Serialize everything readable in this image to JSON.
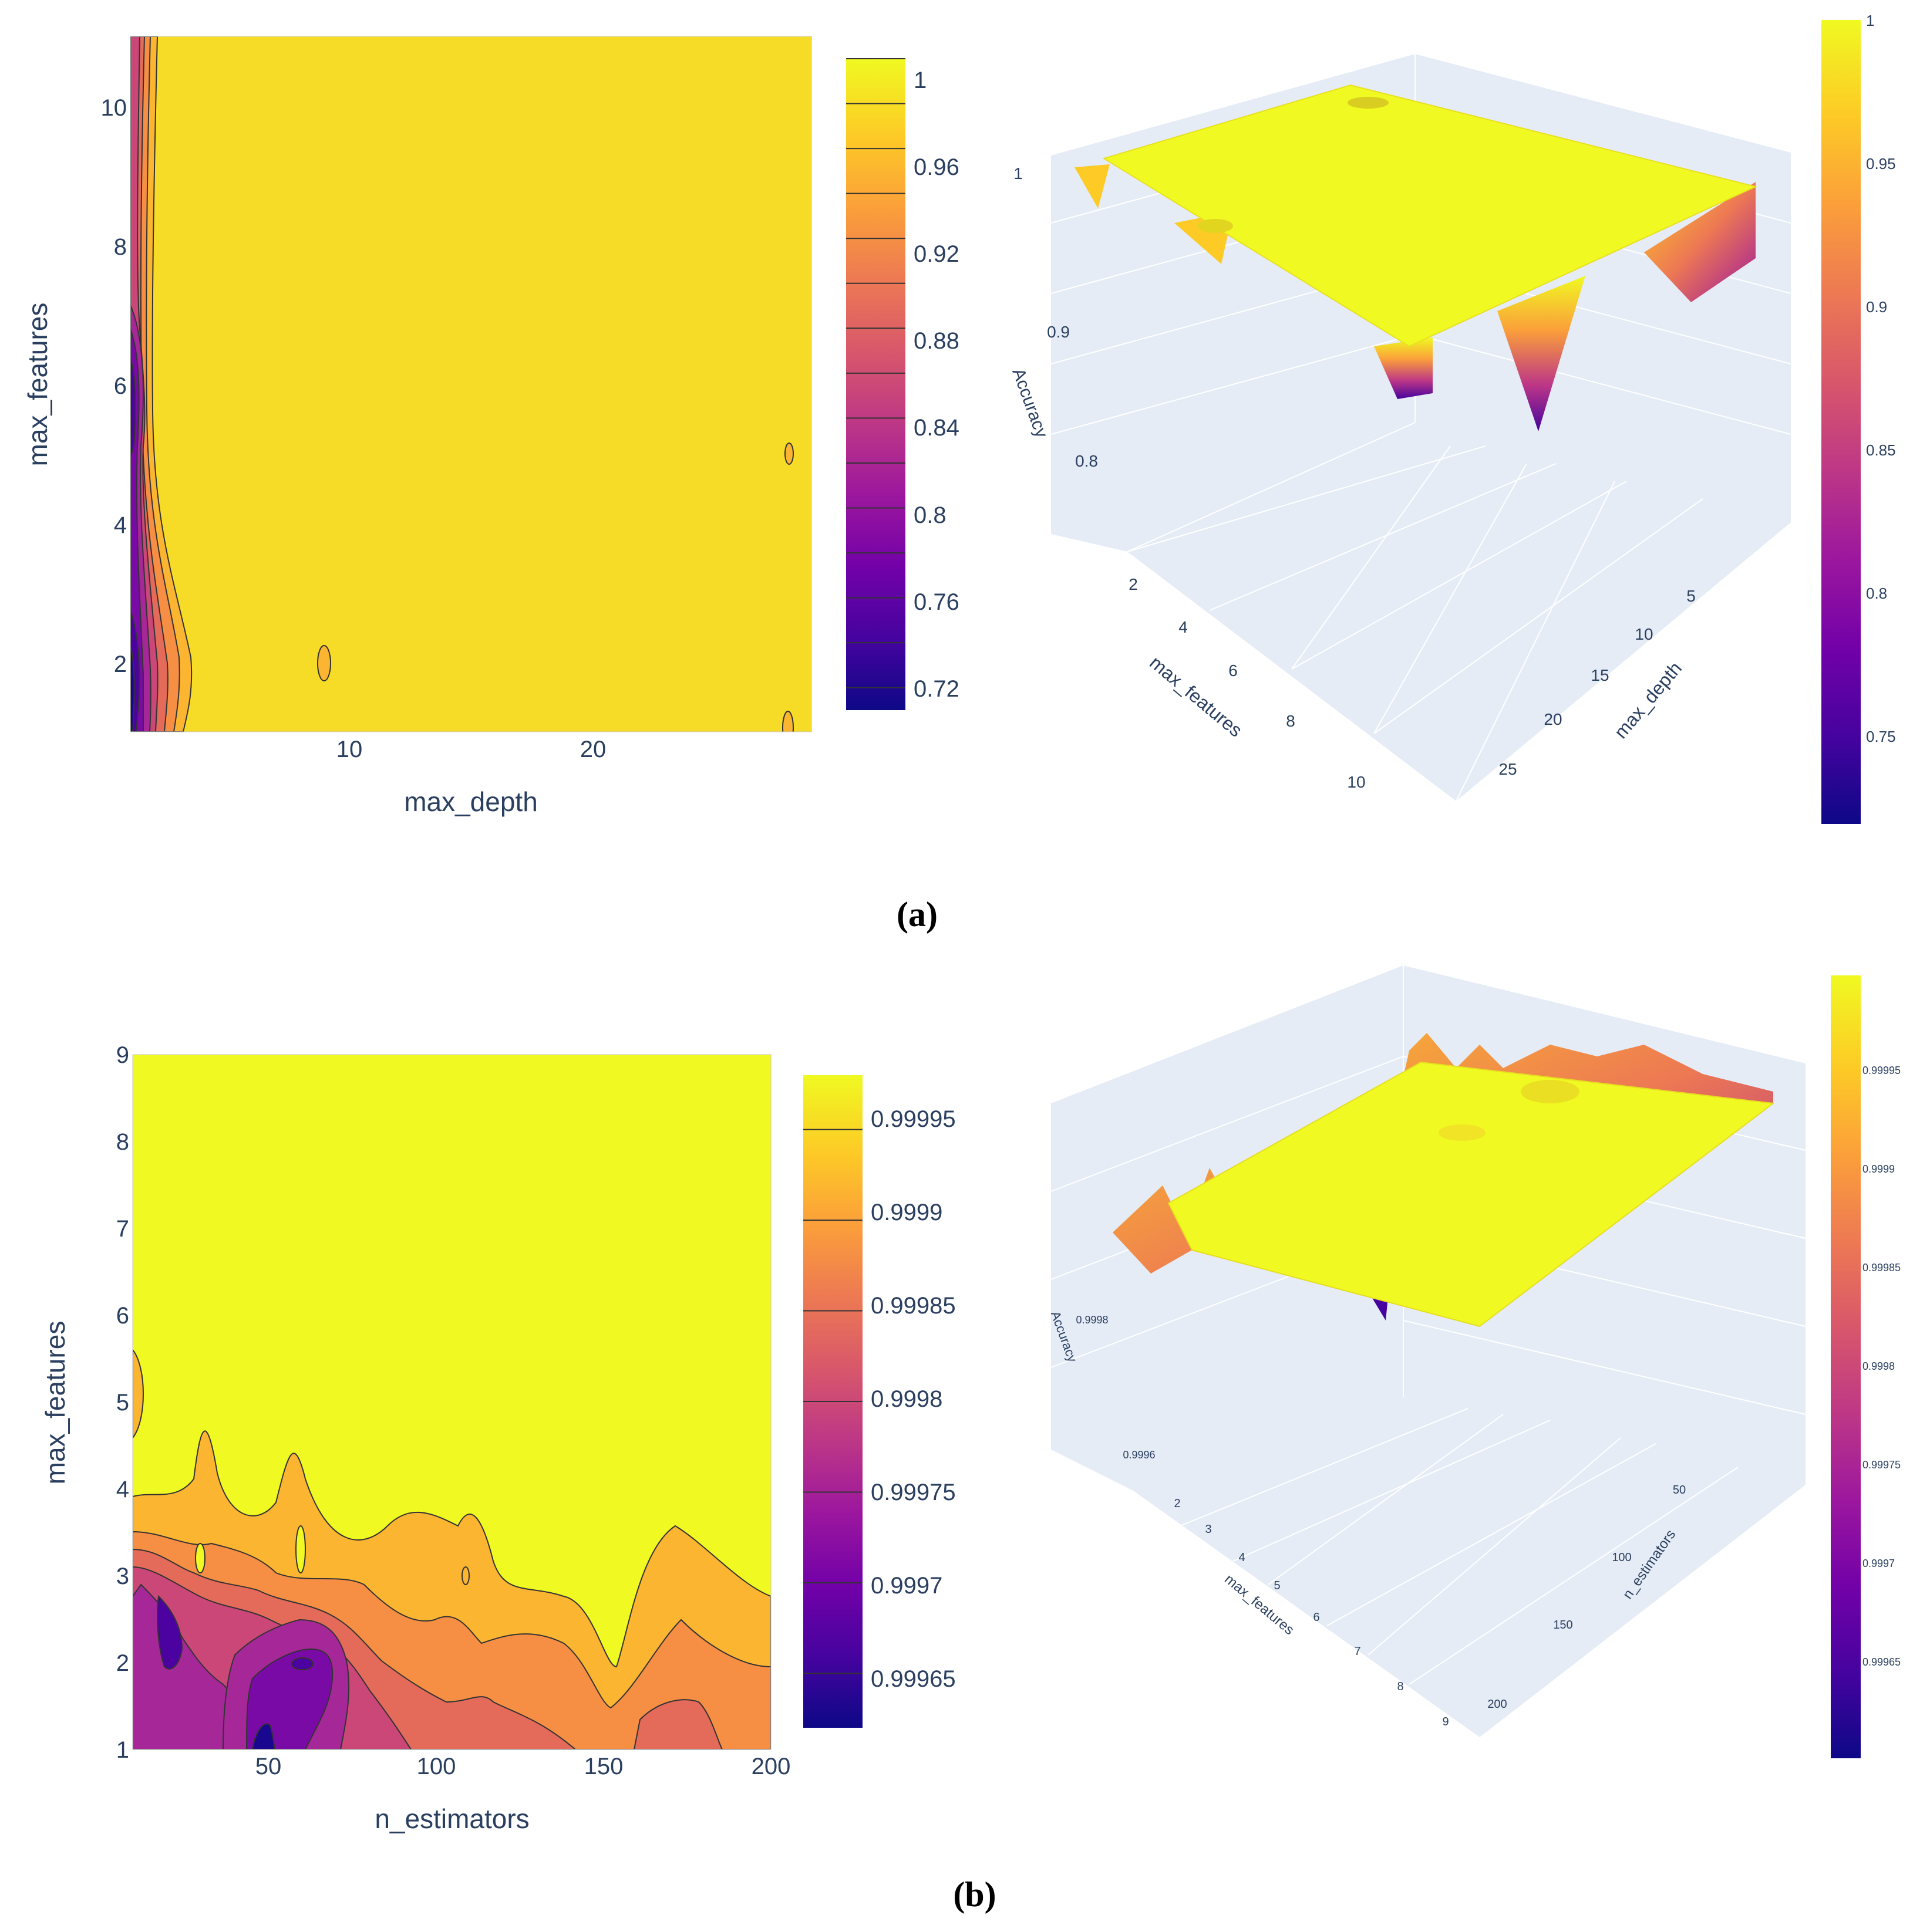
{
  "colorscale": [
    "#0d0887",
    "#46039f",
    "#7201a8",
    "#9c179e",
    "#bd3786",
    "#d8576b",
    "#ed7953",
    "#fb9f3a",
    "#fdca26",
    "#f0f921"
  ],
  "panels": [
    {
      "caption": "(a)",
      "contour": {
        "xlabel": "max_depth",
        "ylabel": "max_features",
        "xticks": [
          "10",
          "20"
        ],
        "yticks": [
          "2",
          "4",
          "6",
          "8",
          "10"
        ],
        "colorbar_ticks": [
          "1",
          "0.96",
          "0.92",
          "0.88",
          "0.84",
          "0.8",
          "0.76",
          "0.72"
        ]
      },
      "surface": {
        "zlabel": "Accuracy",
        "zticks": [
          "1",
          "0.9",
          "0.8"
        ],
        "features_label": "max_features",
        "features_ticks": [
          "2",
          "4",
          "6",
          "8",
          "10"
        ],
        "second_label": "max_depth",
        "second_ticks": [
          "5",
          "10",
          "15",
          "20",
          "25"
        ],
        "colorbar_ticks": [
          "1",
          "0.95",
          "0.9",
          "0.85",
          "0.8",
          "0.75"
        ]
      }
    },
    {
      "caption": "(b)",
      "contour": {
        "xlabel": "n_estimators",
        "ylabel": "max_features",
        "xticks": [
          "50",
          "100",
          "150",
          "200"
        ],
        "yticks": [
          "1",
          "2",
          "3",
          "4",
          "5",
          "6",
          "7",
          "8",
          "9"
        ],
        "colorbar_ticks": [
          "0.99995",
          "0.9999",
          "0.99985",
          "0.9998",
          "0.99975",
          "0.9997",
          "0.99965"
        ]
      },
      "surface": {
        "zlabel": "Accuracy",
        "zticks": [
          "0.9998",
          "0.9996"
        ],
        "features_label": "max_features",
        "features_ticks": [
          "2",
          "3",
          "4",
          "5",
          "6",
          "7",
          "8",
          "9"
        ],
        "second_label": "n_estimators",
        "second_ticks": [
          "50",
          "100",
          "150",
          "200"
        ],
        "colorbar_ticks": [
          "0.99995",
          "0.9999",
          "0.99985",
          "0.9998",
          "0.99975",
          "0.9997",
          "0.99965"
        ]
      }
    }
  ],
  "chart_data": [
    {
      "type": "contour",
      "title": "",
      "xlabel": "max_depth",
      "ylabel": "max_features",
      "xlim": [
        1,
        29
      ],
      "ylim": [
        1,
        11
      ],
      "levels": [
        0.72,
        0.74,
        0.76,
        0.78,
        0.8,
        0.82,
        0.84,
        0.86,
        0.88,
        0.9,
        0.92,
        0.94,
        0.96,
        0.98,
        1.0
      ],
      "colorbar_range": [
        0.71,
        1.0
      ],
      "summary": "Accuracy is ~1 almost everywhere; low values (down to ~0.72) only at max_depth 1-2 and max_features 1-3, with a ridge of lower values near max_depth 1 for max_features 5-7."
    },
    {
      "type": "surface",
      "xlabel": "max_depth",
      "ylabel": "max_features",
      "zlabel": "Accuracy",
      "zrange": [
        0.72,
        1.0
      ],
      "summary": "3D view of the same accuracy surface: flat plateau at 1 with sharp dips to ~0.72-0.75 at max_depth 1."
    },
    {
      "type": "contour",
      "title": "",
      "xlabel": "n_estimators",
      "ylabel": "max_features",
      "xlim": [
        10,
        200
      ],
      "ylim": [
        1,
        9
      ],
      "levels": [
        0.99965,
        0.9997,
        0.99975,
        0.9998,
        0.99985,
        0.9999,
        0.99995
      ],
      "colorbar_range": [
        0.99962,
        0.99998
      ],
      "summary": "Accuracy is ~0.99995+ for max_features >= 4; lower values (down to ~0.99965) for max_features 1-3, especially around n_estimators 20-70."
    },
    {
      "type": "surface",
      "xlabel": "n_estimators",
      "ylabel": "max_features",
      "zlabel": "Accuracy",
      "zrange": [
        0.99962,
        0.99998
      ],
      "summary": "3D view of the n_estimators/max_features accuracy surface: yellow plateau with jagged lower ridges at low max_features."
    }
  ]
}
